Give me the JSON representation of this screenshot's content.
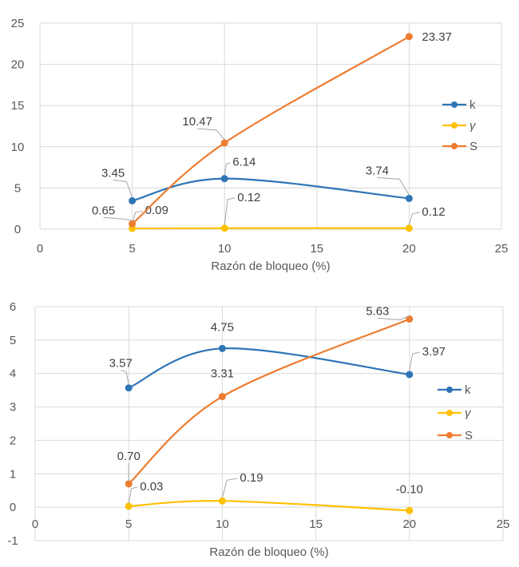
{
  "colors": {
    "k": "#2e75b6",
    "gamma": "#ffc000",
    "S": "#ed7d31",
    "leader": "#a6a6a6"
  },
  "chart_data": [
    {
      "type": "line",
      "title": "",
      "xlabel": "Razón de bloqueo (%)",
      "ylabel": "",
      "xlim": [
        0,
        25
      ],
      "ylim": [
        0,
        25
      ],
      "xticks": [
        0,
        5,
        10,
        15,
        20,
        25
      ],
      "yticks": [
        0,
        5,
        10,
        15,
        20,
        25
      ],
      "grid": true,
      "legend": "right",
      "x": [
        5,
        10,
        20
      ],
      "series": [
        {
          "name": "k",
          "key": "k",
          "values": [
            3.45,
            6.14,
            3.74
          ],
          "labels": [
            "3.45",
            "6.14",
            "3.74"
          ],
          "smooth": true
        },
        {
          "name": "γ",
          "key": "gamma",
          "values": [
            0.09,
            0.12,
            0.12
          ],
          "labels": [
            "0.09",
            "0.12",
            "0.12"
          ],
          "smooth": true
        },
        {
          "name": "S",
          "key": "S",
          "values": [
            0.65,
            10.47,
            23.37
          ],
          "labels": [
            "0.65",
            "10.47",
            "23.37"
          ],
          "smooth": true
        }
      ]
    },
    {
      "type": "line",
      "title": "",
      "xlabel": "Razón de bloqueo (%)",
      "ylabel": "",
      "xlim": [
        0,
        25
      ],
      "ylim": [
        -1,
        6
      ],
      "xticks": [
        0,
        5,
        10,
        15,
        20,
        25
      ],
      "yticks": [
        -1,
        0,
        1,
        2,
        3,
        4,
        5,
        6
      ],
      "grid": true,
      "legend": "right",
      "x": [
        5,
        10,
        20
      ],
      "series": [
        {
          "name": "k",
          "key": "k",
          "values": [
            3.57,
            4.75,
            3.97
          ],
          "labels": [
            "3.57",
            "4.75",
            "3.97"
          ],
          "smooth": true
        },
        {
          "name": "γ",
          "key": "gamma",
          "values": [
            0.03,
            0.19,
            -0.1
          ],
          "labels": [
            "0.03",
            "0.19",
            "-0.10"
          ],
          "smooth": true
        },
        {
          "name": "S",
          "key": "S",
          "values": [
            0.7,
            3.31,
            5.63
          ],
          "labels": [
            "0.70",
            "3.31",
            "5.63"
          ],
          "smooth": true
        }
      ]
    }
  ]
}
